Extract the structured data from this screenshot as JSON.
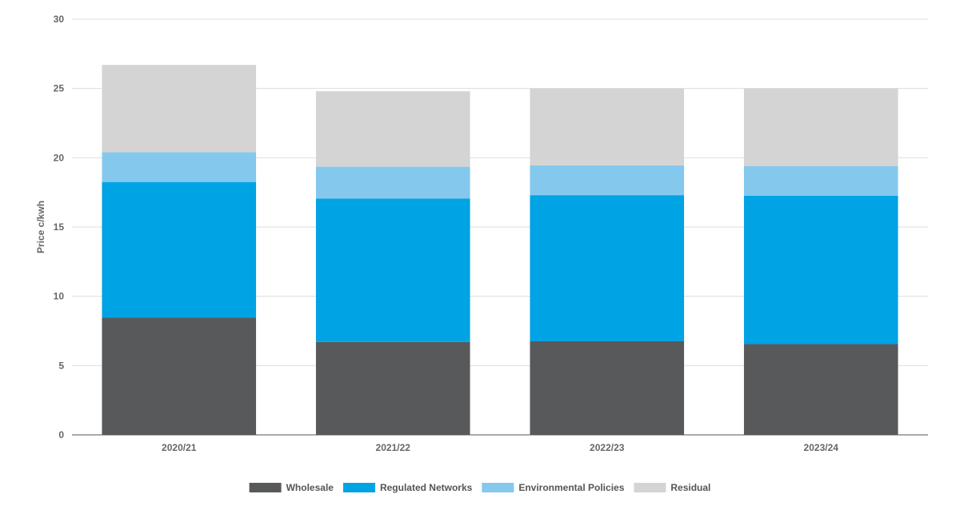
{
  "chart_data": {
    "type": "bar",
    "stacked": true,
    "categories": [
      "2020/21",
      "2021/22",
      "2022/23",
      "2023/24"
    ],
    "series": [
      {
        "name": "Wholesale",
        "color": "#58595b",
        "values": [
          8.45,
          6.7,
          6.75,
          6.55
        ]
      },
      {
        "name": "Regulated Networks",
        "color": "#00a3e3",
        "values": [
          9.8,
          10.35,
          10.55,
          10.7
        ]
      },
      {
        "name": "Environmental Policies",
        "color": "#84c8ee",
        "values": [
          2.15,
          2.3,
          2.15,
          2.15
        ]
      },
      {
        "name": "Residual",
        "color": "#d4d4d4",
        "values": [
          6.3,
          5.45,
          5.55,
          5.6
        ]
      }
    ],
    "title": "",
    "xlabel": "",
    "ylabel": "Price c/kwh",
    "ylim": [
      0,
      30
    ],
    "yticks": [
      "0",
      "5",
      "10",
      "15",
      "20",
      "25",
      "30"
    ],
    "grid": true,
    "legend_position": "bottom"
  }
}
